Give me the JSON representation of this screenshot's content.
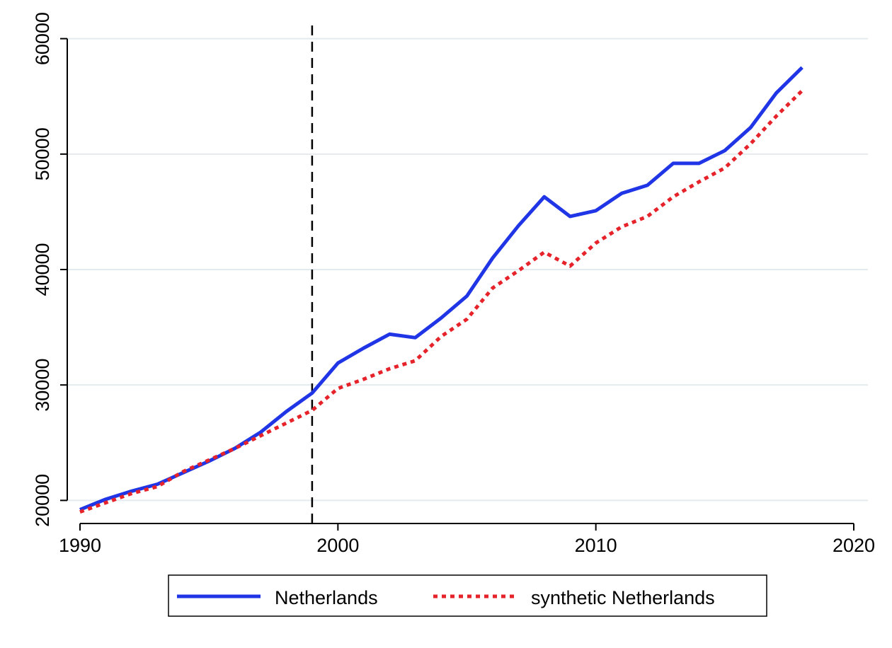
{
  "chart_data": {
    "type": "line",
    "title": "",
    "xlabel": "",
    "ylabel": "",
    "xlim": [
      1990,
      2020
    ],
    "ylim": [
      18000,
      62000
    ],
    "x_ticks": [
      1990,
      2000,
      2010,
      2020
    ],
    "x_tick_labels": [
      "1990",
      "2000",
      "2010",
      "2020"
    ],
    "y_ticks": [
      20000,
      30000,
      40000,
      50000,
      60000
    ],
    "y_tick_labels": [
      "20000",
      "30000",
      "40000",
      "50000",
      "60000"
    ],
    "grid": "horizontal",
    "treatment_year": 1999,
    "x": [
      1990,
      1991,
      1992,
      1993,
      1994,
      1995,
      1996,
      1997,
      1998,
      1999,
      2000,
      2001,
      2002,
      2003,
      2004,
      2005,
      2006,
      2007,
      2008,
      2009,
      2010,
      2011,
      2012,
      2013,
      2014,
      2015,
      2016,
      2017,
      2018
    ],
    "series": [
      {
        "name": "Netherlands",
        "color": "#1f35e6",
        "style": "solid",
        "values": [
          19200,
          20100,
          20800,
          21400,
          22400,
          23400,
          24500,
          25900,
          27700,
          29300,
          31900,
          33200,
          34400,
          34100,
          35800,
          37700,
          41000,
          43800,
          46300,
          44600,
          45100,
          46600,
          47300,
          49200,
          49200,
          50300,
          52300,
          55300,
          57500
        ]
      },
      {
        "name": "synthetic Netherlands",
        "color": "#e6232a",
        "style": "dotted",
        "values": [
          19000,
          19800,
          20600,
          21200,
          22500,
          23500,
          24500,
          25600,
          26700,
          27800,
          29700,
          30500,
          31400,
          32100,
          34200,
          35700,
          38400,
          39900,
          41500,
          40300,
          42300,
          43700,
          44600,
          46300,
          47600,
          48800,
          50900,
          53300,
          55500
        ]
      }
    ],
    "legend": {
      "placement": "bottom-center",
      "items": [
        "Netherlands",
        "synthetic Netherlands"
      ]
    },
    "colors": {
      "grid": "#e4ebee",
      "axis": "#000000",
      "reference_line": "#000000"
    }
  }
}
